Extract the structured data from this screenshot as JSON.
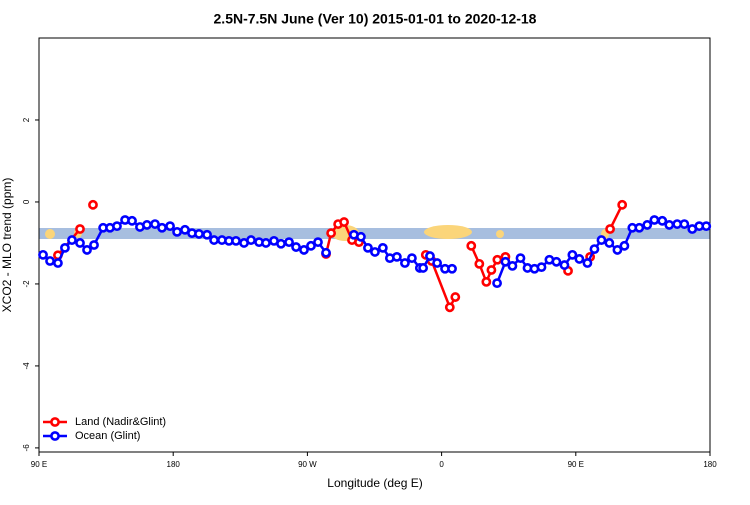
{
  "chart_data": {
    "type": "line",
    "title": "2.5N-7.5N June (Ver 10)   2015-01-01 to 2020-12-18",
    "x_label": "Longitude (deg E)",
    "y_label": "XCO2 - MLO trend (ppm)",
    "xlim": [
      90,
      540
    ],
    "xticks": [
      {
        "value": 90,
        "label": "90 E"
      },
      180,
      {
        "value": 270,
        "label": "90 W"
      },
      {
        "value": 360,
        "label": "0"
      },
      {
        "value": 450,
        "label": "90 E"
      },
      {
        "value": 540,
        "label": "180"
      }
    ],
    "ylim": [
      -6.1,
      4
    ],
    "yticks": [
      -6,
      -4,
      -2,
      0,
      2
    ],
    "legend": "bottom-left",
    "series": [
      {
        "name": "Land (Nadir&Glint)",
        "color": "#ff0000",
        "x": [
          102.7,
          117.5,
          null,
          126.2,
          null,
          282.5,
          285.9,
          290.6,
          294.6,
          299.9,
          304.6,
          null,
          349.4,
          353.4,
          365.5,
          369.2,
          null,
          379.9,
          385.3,
          390,
          393.4,
          397.4,
          402.8,
          null,
          444.8,
          null,
          459.6,
          null,
          473,
          481.1
        ],
        "values": [
          -1.3,
          -0.66,
          null,
          -0.07,
          null,
          -1.27,
          -0.76,
          -0.54,
          -0.49,
          -0.93,
          -0.98,
          null,
          -1.29,
          -1.44,
          -2.57,
          -2.32,
          null,
          -1.07,
          -1.51,
          -1.95,
          -1.66,
          -1.41,
          -1.34,
          null,
          -1.68,
          null,
          -1.34,
          null,
          -0.66,
          -0.07
        ]
      },
      {
        "name": "Ocean (Glint)",
        "color": "#0000ff",
        "x": [
          92.7,
          97.4,
          102.7,
          107.4,
          112.1,
          117.5,
          122.2,
          126.9,
          133,
          137.6,
          142.3,
          147.7,
          152.4,
          157.7,
          162.4,
          167.8,
          172.5,
          177.9,
          182.6,
          187.9,
          192.6,
          197.3,
          202.7,
          207.4,
          212.7,
          217.4,
          222.1,
          227.5,
          232.2,
          237.6,
          242.2,
          247.6,
          252.3,
          257.7,
          262.4,
          267.7,
          272.4,
          277.1,
          282.5,
          null,
          301.2,
          305.9,
          310.6,
          315.3,
          320.6,
          325.3,
          330,
          335.4,
          340.1,
          345.4,
          347.6,
          352.2,
          357,
          362.3,
          367,
          null,
          397.2,
          402.8,
          407.5,
          412.9,
          417.6,
          422.3,
          427,
          432.3,
          437,
          442.4,
          447.7,
          452.4,
          457.8,
          462.5,
          467.2,
          472.5,
          477.9,
          482.6,
          487.9,
          492.6,
          497.9,
          502.7,
          508,
          512.7,
          518,
          522.8,
          528.1,
          532.8,
          537.5
        ],
        "values": [
          -1.29,
          -1.44,
          -1.49,
          -1.12,
          -0.93,
          -1.0,
          -1.17,
          -1.05,
          -0.63,
          -0.63,
          -0.59,
          -0.44,
          -0.46,
          -0.61,
          -0.56,
          -0.54,
          -0.63,
          -0.59,
          -0.73,
          -0.68,
          -0.76,
          -0.78,
          -0.8,
          -0.93,
          -0.93,
          -0.95,
          -0.95,
          -1.0,
          -0.93,
          -0.98,
          -1.0,
          -0.95,
          -1.02,
          -0.98,
          -1.1,
          -1.17,
          -1.07,
          -0.98,
          -1.24,
          null,
          -0.8,
          -0.85,
          -1.12,
          -1.22,
          -1.12,
          -1.37,
          -1.34,
          -1.49,
          -1.37,
          -1.61,
          -1.61,
          -1.32,
          -1.49,
          -1.63,
          -1.63,
          null,
          -1.98,
          -1.46,
          -1.56,
          -1.37,
          -1.61,
          -1.63,
          -1.59,
          -1.41,
          -1.46,
          -1.54,
          -1.29,
          -1.39,
          -1.49,
          -1.15,
          -0.93,
          -1.0,
          -1.17,
          -1.07,
          -0.63,
          -0.63,
          -0.56,
          -0.44,
          -0.46,
          -0.56,
          -0.54,
          -0.54,
          -0.66,
          -0.59,
          -0.59
        ]
      }
    ]
  }
}
